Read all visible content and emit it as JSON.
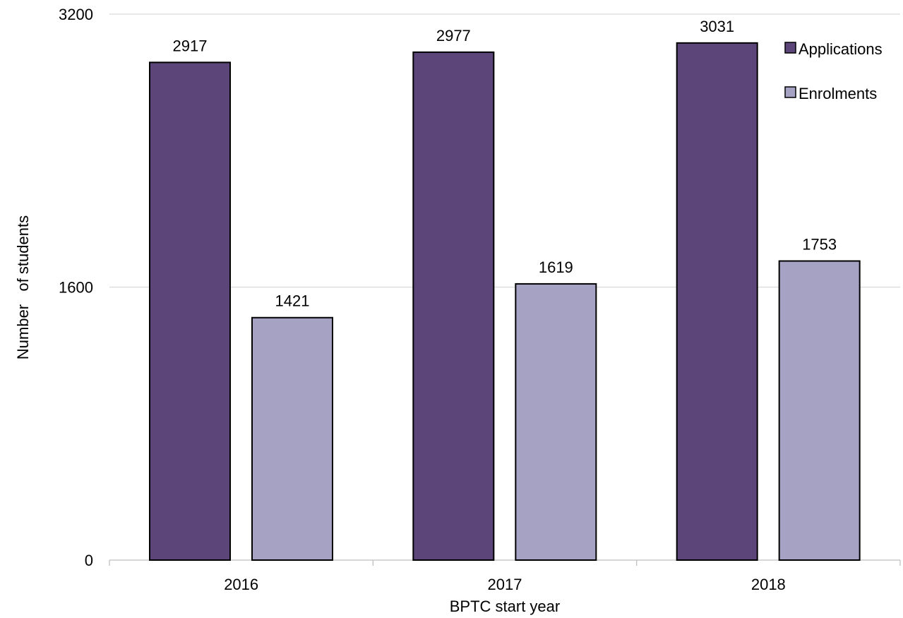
{
  "chart_data": {
    "type": "bar",
    "categories": [
      "2016",
      "2017",
      "2018"
    ],
    "series": [
      {
        "name": "Applications",
        "values": [
          2917,
          2977,
          3031
        ],
        "color": "#5c4679"
      },
      {
        "name": "Enrolments",
        "values": [
          1421,
          1619,
          1753
        ],
        "color": "#a6a2c4"
      }
    ],
    "xlabel": "BPTC start year",
    "ylabel": "Number   of students",
    "ylim": [
      0,
      3200
    ],
    "yticks": [
      "0",
      "1600",
      "3200"
    ],
    "grid": true,
    "legend_position": "top-right",
    "data_labels": true
  }
}
